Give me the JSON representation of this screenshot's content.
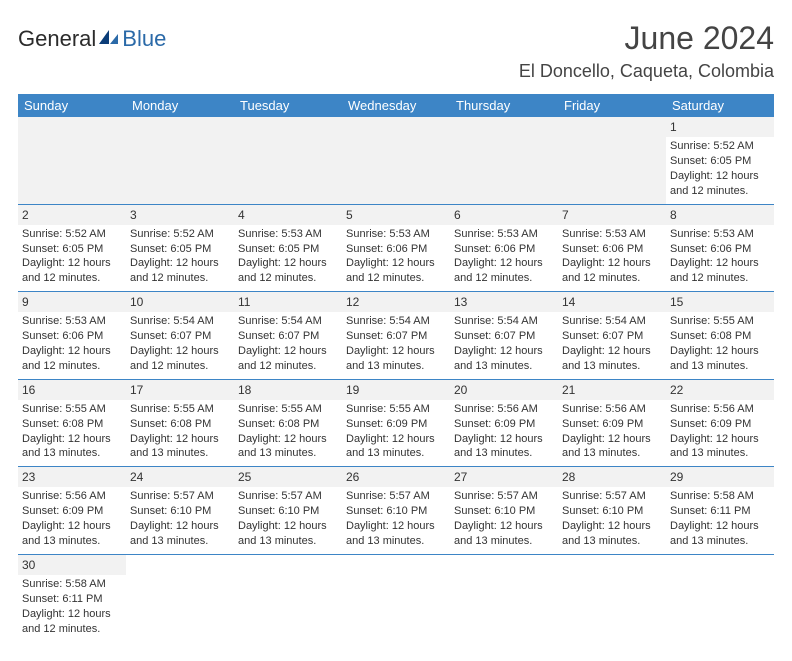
{
  "brand": {
    "part1": "General",
    "part2": "Blue"
  },
  "title": "June 2024",
  "location": "El Doncello, Caqueta, Colombia",
  "colors": {
    "header_bg": "#3d85c6",
    "header_text": "#ffffff",
    "row_border": "#3d85c6",
    "daynum_bg": "#f2f2f2",
    "brand_dark": "#2b2b2b",
    "brand_blue": "#2b6aa8"
  },
  "weekdays": [
    "Sunday",
    "Monday",
    "Tuesday",
    "Wednesday",
    "Thursday",
    "Friday",
    "Saturday"
  ],
  "weeks": [
    [
      null,
      null,
      null,
      null,
      null,
      null,
      {
        "n": "1",
        "sr": "Sunrise: 5:52 AM",
        "ss": "Sunset: 6:05 PM",
        "d1": "Daylight: 12 hours",
        "d2": "and 12 minutes."
      }
    ],
    [
      {
        "n": "2",
        "sr": "Sunrise: 5:52 AM",
        "ss": "Sunset: 6:05 PM",
        "d1": "Daylight: 12 hours",
        "d2": "and 12 minutes."
      },
      {
        "n": "3",
        "sr": "Sunrise: 5:52 AM",
        "ss": "Sunset: 6:05 PM",
        "d1": "Daylight: 12 hours",
        "d2": "and 12 minutes."
      },
      {
        "n": "4",
        "sr": "Sunrise: 5:53 AM",
        "ss": "Sunset: 6:05 PM",
        "d1": "Daylight: 12 hours",
        "d2": "and 12 minutes."
      },
      {
        "n": "5",
        "sr": "Sunrise: 5:53 AM",
        "ss": "Sunset: 6:06 PM",
        "d1": "Daylight: 12 hours",
        "d2": "and 12 minutes."
      },
      {
        "n": "6",
        "sr": "Sunrise: 5:53 AM",
        "ss": "Sunset: 6:06 PM",
        "d1": "Daylight: 12 hours",
        "d2": "and 12 minutes."
      },
      {
        "n": "7",
        "sr": "Sunrise: 5:53 AM",
        "ss": "Sunset: 6:06 PM",
        "d1": "Daylight: 12 hours",
        "d2": "and 12 minutes."
      },
      {
        "n": "8",
        "sr": "Sunrise: 5:53 AM",
        "ss": "Sunset: 6:06 PM",
        "d1": "Daylight: 12 hours",
        "d2": "and 12 minutes."
      }
    ],
    [
      {
        "n": "9",
        "sr": "Sunrise: 5:53 AM",
        "ss": "Sunset: 6:06 PM",
        "d1": "Daylight: 12 hours",
        "d2": "and 12 minutes."
      },
      {
        "n": "10",
        "sr": "Sunrise: 5:54 AM",
        "ss": "Sunset: 6:07 PM",
        "d1": "Daylight: 12 hours",
        "d2": "and 12 minutes."
      },
      {
        "n": "11",
        "sr": "Sunrise: 5:54 AM",
        "ss": "Sunset: 6:07 PM",
        "d1": "Daylight: 12 hours",
        "d2": "and 12 minutes."
      },
      {
        "n": "12",
        "sr": "Sunrise: 5:54 AM",
        "ss": "Sunset: 6:07 PM",
        "d1": "Daylight: 12 hours",
        "d2": "and 13 minutes."
      },
      {
        "n": "13",
        "sr": "Sunrise: 5:54 AM",
        "ss": "Sunset: 6:07 PM",
        "d1": "Daylight: 12 hours",
        "d2": "and 13 minutes."
      },
      {
        "n": "14",
        "sr": "Sunrise: 5:54 AM",
        "ss": "Sunset: 6:07 PM",
        "d1": "Daylight: 12 hours",
        "d2": "and 13 minutes."
      },
      {
        "n": "15",
        "sr": "Sunrise: 5:55 AM",
        "ss": "Sunset: 6:08 PM",
        "d1": "Daylight: 12 hours",
        "d2": "and 13 minutes."
      }
    ],
    [
      {
        "n": "16",
        "sr": "Sunrise: 5:55 AM",
        "ss": "Sunset: 6:08 PM",
        "d1": "Daylight: 12 hours",
        "d2": "and 13 minutes."
      },
      {
        "n": "17",
        "sr": "Sunrise: 5:55 AM",
        "ss": "Sunset: 6:08 PM",
        "d1": "Daylight: 12 hours",
        "d2": "and 13 minutes."
      },
      {
        "n": "18",
        "sr": "Sunrise: 5:55 AM",
        "ss": "Sunset: 6:08 PM",
        "d1": "Daylight: 12 hours",
        "d2": "and 13 minutes."
      },
      {
        "n": "19",
        "sr": "Sunrise: 5:55 AM",
        "ss": "Sunset: 6:09 PM",
        "d1": "Daylight: 12 hours",
        "d2": "and 13 minutes."
      },
      {
        "n": "20",
        "sr": "Sunrise: 5:56 AM",
        "ss": "Sunset: 6:09 PM",
        "d1": "Daylight: 12 hours",
        "d2": "and 13 minutes."
      },
      {
        "n": "21",
        "sr": "Sunrise: 5:56 AM",
        "ss": "Sunset: 6:09 PM",
        "d1": "Daylight: 12 hours",
        "d2": "and 13 minutes."
      },
      {
        "n": "22",
        "sr": "Sunrise: 5:56 AM",
        "ss": "Sunset: 6:09 PM",
        "d1": "Daylight: 12 hours",
        "d2": "and 13 minutes."
      }
    ],
    [
      {
        "n": "23",
        "sr": "Sunrise: 5:56 AM",
        "ss": "Sunset: 6:09 PM",
        "d1": "Daylight: 12 hours",
        "d2": "and 13 minutes."
      },
      {
        "n": "24",
        "sr": "Sunrise: 5:57 AM",
        "ss": "Sunset: 6:10 PM",
        "d1": "Daylight: 12 hours",
        "d2": "and 13 minutes."
      },
      {
        "n": "25",
        "sr": "Sunrise: 5:57 AM",
        "ss": "Sunset: 6:10 PM",
        "d1": "Daylight: 12 hours",
        "d2": "and 13 minutes."
      },
      {
        "n": "26",
        "sr": "Sunrise: 5:57 AM",
        "ss": "Sunset: 6:10 PM",
        "d1": "Daylight: 12 hours",
        "d2": "and 13 minutes."
      },
      {
        "n": "27",
        "sr": "Sunrise: 5:57 AM",
        "ss": "Sunset: 6:10 PM",
        "d1": "Daylight: 12 hours",
        "d2": "and 13 minutes."
      },
      {
        "n": "28",
        "sr": "Sunrise: 5:57 AM",
        "ss": "Sunset: 6:10 PM",
        "d1": "Daylight: 12 hours",
        "d2": "and 13 minutes."
      },
      {
        "n": "29",
        "sr": "Sunrise: 5:58 AM",
        "ss": "Sunset: 6:11 PM",
        "d1": "Daylight: 12 hours",
        "d2": "and 13 minutes."
      }
    ],
    [
      {
        "n": "30",
        "sr": "Sunrise: 5:58 AM",
        "ss": "Sunset: 6:11 PM",
        "d1": "Daylight: 12 hours",
        "d2": "and 12 minutes."
      },
      null,
      null,
      null,
      null,
      null,
      null
    ]
  ]
}
